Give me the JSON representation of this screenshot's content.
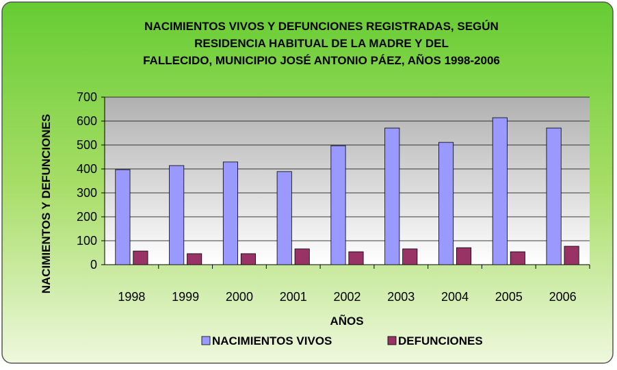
{
  "chart_data": {
    "type": "bar",
    "title": [
      "NACIMIENTOS VIVOS Y DEFUNCIONES REGISTRADAS, SEGÚN",
      "RESIDENCIA HABITUAL DE LA MADRE Y DEL",
      "FALLECIDO, MUNICIPIO JOSÉ ANTONIO PÁEZ, AÑOS 1998-2006"
    ],
    "x_label": "AÑOS",
    "y_label": "NACIMIENTOS Y DEFUNCIONES",
    "categories": [
      "1998",
      "1999",
      "2000",
      "2001",
      "2002",
      "2003",
      "2004",
      "2005",
      "2006"
    ],
    "series": [
      {
        "name": "NACIMIENTOS VIVOS",
        "color": "#9999ff",
        "values": [
          397,
          414,
          429,
          389,
          497,
          571,
          511,
          614,
          571
        ]
      },
      {
        "name": "DEFUNCIONES",
        "color": "#993366",
        "values": [
          57,
          46,
          46,
          66,
          54,
          66,
          71,
          54,
          77
        ]
      }
    ],
    "ylim": [
      0,
      700
    ],
    "yticks": [
      0,
      100,
      200,
      300,
      400,
      500,
      600,
      700
    ],
    "grid": true,
    "legend": "bottom"
  }
}
